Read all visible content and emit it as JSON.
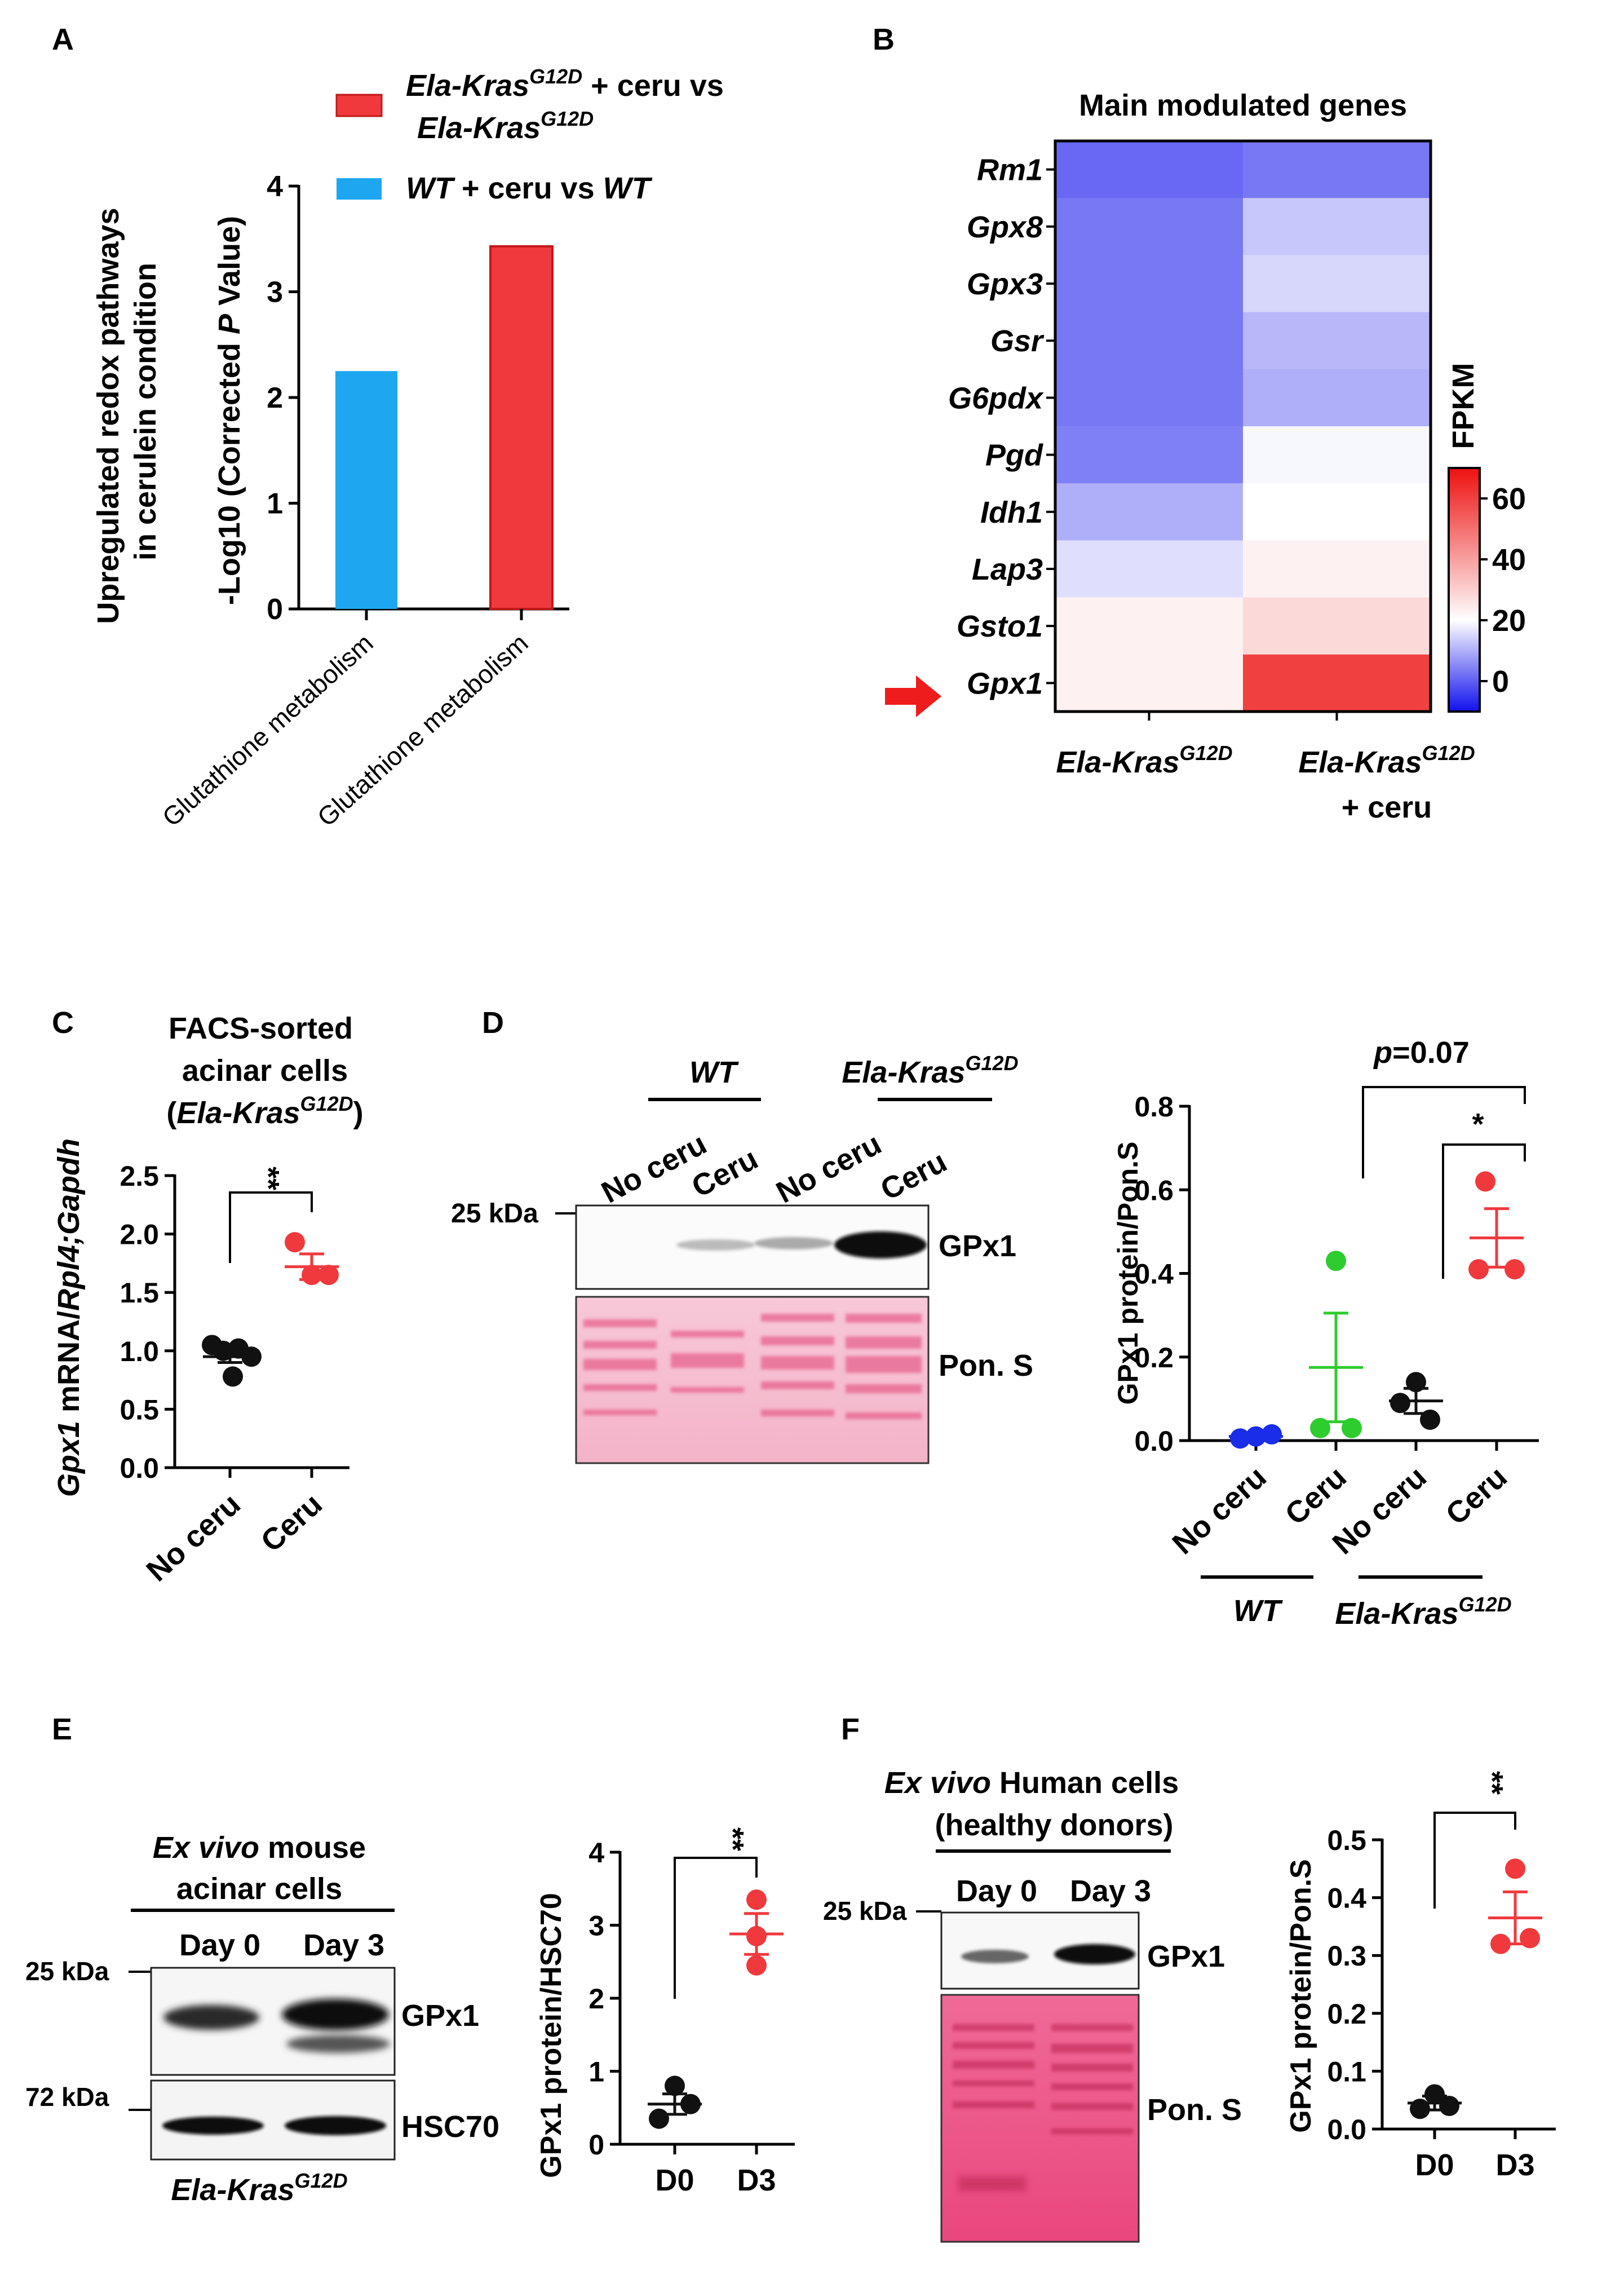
{
  "panel_letters": [
    "A",
    "B",
    "C",
    "D",
    "E",
    "F"
  ],
  "colors": {
    "blue": "#1ea7f0",
    "red": "#f0393d",
    "green": "#2ecc2e",
    "black": "#111111",
    "dot_blue": "#1a2de8",
    "arrow": "#ee1c1c",
    "ponceau": "#ef7fa8"
  },
  "panelA": {
    "legend": [
      {
        "italic1": "Ela-Kras",
        "sup": "G12D",
        "rest": " + ceru vs",
        "line2_italic": "Ela-Kras",
        "line2_sup": "G12D",
        "color": "#f0393d"
      },
      {
        "italic1": "WT",
        "rest": " + ceru vs ",
        "italic2": "WT",
        "color": "#1ea7f0"
      }
    ],
    "ylabel_outer": [
      "Upregulated redox pathways",
      "in cerulein condition"
    ],
    "ylabel_inner": {
      "a": "-Log10 (Corrected ",
      "p": "P",
      "b": " Value)"
    },
    "x_ticks": [
      "Glutathione metabolism",
      "Glutathione metabolism"
    ]
  },
  "panelB": {
    "title": "Main modulated genes",
    "genes": [
      "Rm1",
      "Gpx8",
      "Gpx3",
      "Gsr",
      "G6pdx",
      "Pgd",
      "Idh1",
      "Lap3",
      "Gsto1",
      "Gpx1"
    ],
    "columns": [
      {
        "italic": "Ela-Kras",
        "sup": "G12D",
        "line2": ""
      },
      {
        "italic": "Ela-Kras",
        "sup": "G12D",
        "line2": "+ ceru"
      }
    ],
    "colorbar_label": "FPKM",
    "colorbar_ticks": [
      "60",
      "40",
      "20",
      "0"
    ]
  },
  "panelC": {
    "title": [
      "FACS-sorted",
      "acinar cells"
    ],
    "title_genotype": {
      "open": "(",
      "italic": "Ela-Kras",
      "sup": "G12D",
      "close": ")"
    },
    "ylabel": {
      "gene": "Gpx1",
      "mid": " mRNA/",
      "g2": "Rpl4;Gapdh"
    },
    "significance": "**"
  },
  "panelD": {
    "blot_groups": [
      {
        "italic": "WT",
        "sup": ""
      },
      {
        "italic": "Ela-Kras",
        "sup": "G12D"
      }
    ],
    "lanes": [
      "No ceru",
      "Ceru",
      "No ceru",
      "Ceru"
    ],
    "marker": "25 kDa",
    "band_labels": [
      "GPx1",
      "Pon. S"
    ],
    "chart_p_label": {
      "p": "p",
      "rest": "=0.07"
    },
    "chart_star": "*",
    "chart_groups": [
      {
        "italic": "WT",
        "sup": ""
      },
      {
        "italic": "Ela-Kras",
        "sup": "G12D"
      }
    ]
  },
  "panelE": {
    "title": [
      {
        "italic": "Ex vivo",
        "rest": " mouse"
      },
      {
        "italic": "",
        "rest": "acinar cells"
      }
    ],
    "lanes": [
      "Day 0",
      "Day 3"
    ],
    "markers": [
      "25 kDa",
      "72 kDa"
    ],
    "band_labels": [
      "GPx1",
      "HSC70"
    ],
    "genotype": {
      "italic": "Ela-Kras",
      "sup": "G12D"
    },
    "significance": "**"
  },
  "panelF": {
    "title": [
      {
        "italic": "Ex vivo",
        "rest": " Human cells"
      },
      {
        "italic": "",
        "rest": "(healthy donors)"
      }
    ],
    "lanes": [
      "Day 0",
      "Day 3"
    ],
    "marker": "25 kDa",
    "band_labels": [
      "GPx1",
      "Pon. S"
    ],
    "significance": "**"
  },
  "chart_data": [
    {
      "id": "A",
      "type": "bar",
      "categories": [
        "Glutathione metabolism",
        "Glutathione metabolism"
      ],
      "values": [
        2.25,
        3.43
      ],
      "series_names": [
        "WT + ceru vs WT",
        "Ela-Kras G12D + ceru vs Ela-Kras G12D"
      ],
      "ylabel": "-Log10 (Corrected P Value)",
      "ylim": [
        0,
        4
      ],
      "yticks": [
        0,
        1,
        2,
        3,
        4
      ]
    },
    {
      "id": "B",
      "type": "heatmap",
      "title": "Main modulated genes",
      "rows": [
        "Rm1",
        "Gpx8",
        "Gpx3",
        "Gsr",
        "G6pdx",
        "Pgd",
        "Idh1",
        "Lap3",
        "Gsto1",
        "Gpx1"
      ],
      "columns": [
        "Ela-Kras G12D",
        "Ela-Kras G12D + ceru"
      ],
      "values": [
        [
          1,
          3
        ],
        [
          3,
          13
        ],
        [
          3,
          15
        ],
        [
          3,
          11
        ],
        [
          3,
          10
        ],
        [
          4,
          19
        ],
        [
          10,
          20
        ],
        [
          16,
          23
        ],
        [
          23,
          28
        ],
        [
          23,
          60
        ]
      ],
      "colorbar": {
        "label": "FPKM",
        "min": -10,
        "max": 70,
        "mid": 20,
        "ticks": [
          0,
          20,
          40,
          60
        ]
      }
    },
    {
      "id": "C",
      "type": "scatter",
      "categories": [
        "No ceru",
        "Ceru"
      ],
      "points": [
        [
          1.05,
          1.0,
          1.02,
          0.95,
          0.78
        ],
        [
          1.93,
          1.65,
          1.65
        ]
      ],
      "means": [
        0.95,
        1.72
      ],
      "sem": [
        0.05,
        0.11
      ],
      "ylabel": "Gpx1 mRNA/Rpl4;Gapdh",
      "ylim": [
        0,
        2.5
      ],
      "yticks": [
        0.0,
        0.5,
        1.0,
        1.5,
        2.0,
        2.5
      ],
      "significance": "**"
    },
    {
      "id": "D",
      "type": "scatter",
      "categories": [
        "No ceru",
        "Ceru",
        "No ceru",
        "Ceru"
      ],
      "points": [
        [
          0.005,
          0.01,
          0.015
        ],
        [
          0.43,
          0.03,
          0.03
        ],
        [
          0.14,
          0.09,
          0.05
        ],
        [
          0.62,
          0.41,
          0.41
        ]
      ],
      "means": [
        0.01,
        0.175,
        0.095,
        0.485
      ],
      "sem": [
        0.003,
        0.13,
        0.03,
        0.07
      ],
      "ylabel": "GPx1 protein/Pon.S",
      "ylim": [
        0,
        0.8
      ],
      "yticks": [
        0.0,
        0.2,
        0.4,
        0.6,
        0.8
      ],
      "comparisons": [
        "p=0.07",
        "*"
      ]
    },
    {
      "id": "E",
      "type": "scatter",
      "categories": [
        "D0",
        "D3"
      ],
      "points": [
        [
          0.8,
          0.55,
          0.35
        ],
        [
          3.35,
          2.85,
          2.45
        ]
      ],
      "means": [
        0.55,
        2.88
      ],
      "sem": [
        0.14,
        0.28
      ],
      "ylabel": "GPx1 protein/HSC70",
      "ylim": [
        0,
        4
      ],
      "yticks": [
        0,
        1,
        2,
        3,
        4
      ],
      "significance": "**"
    },
    {
      "id": "F",
      "type": "scatter",
      "categories": [
        "D0",
        "D3"
      ],
      "points": [
        [
          0.06,
          0.04,
          0.035
        ],
        [
          0.45,
          0.33,
          0.32
        ]
      ],
      "means": [
        0.045,
        0.365
      ],
      "sem": [
        0.012,
        0.045
      ],
      "ylabel": "GPx1 protein/Pon.S",
      "ylim": [
        0,
        0.5
      ],
      "yticks": [
        0.0,
        0.1,
        0.2,
        0.3,
        0.4,
        0.5
      ],
      "significance": "**"
    }
  ]
}
